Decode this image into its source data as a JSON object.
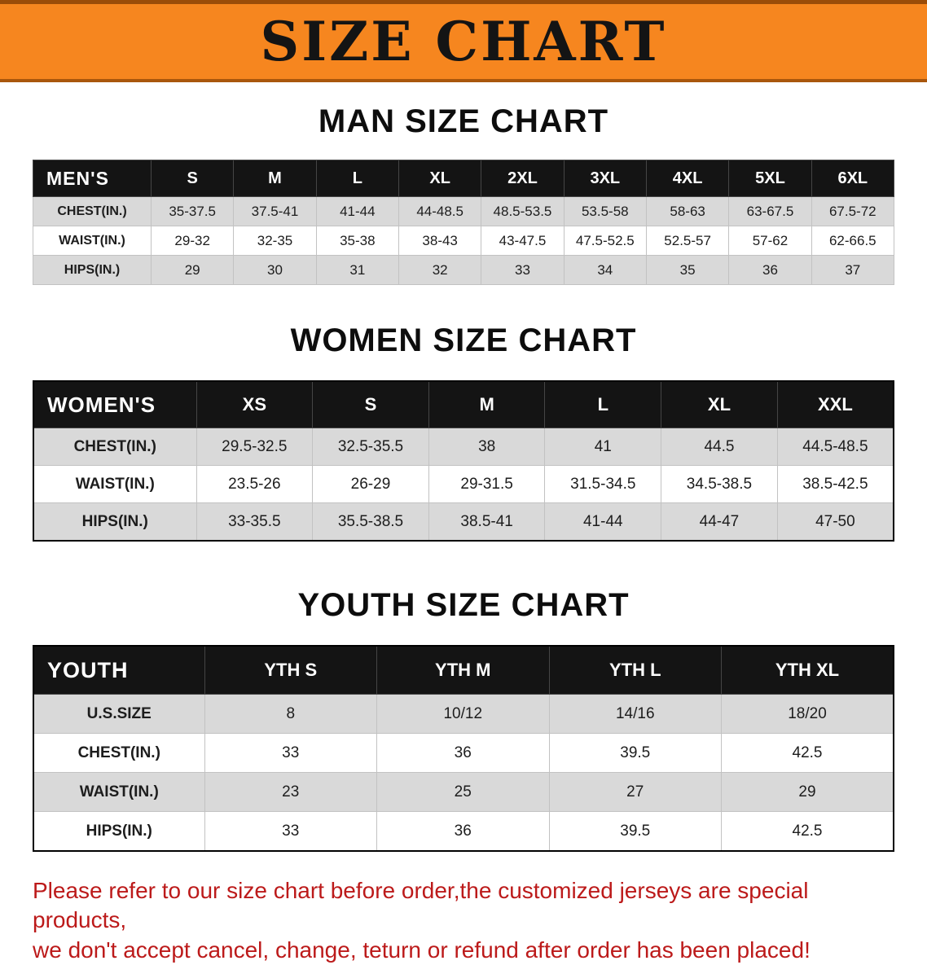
{
  "banner": {
    "title": "SIZE CHART"
  },
  "chart_data": [
    {
      "type": "table",
      "title": "MAN SIZE CHART",
      "corner": "MEN'S",
      "columns": [
        "S",
        "M",
        "L",
        "XL",
        "2XL",
        "3XL",
        "4XL",
        "5XL",
        "6XL"
      ],
      "rows": [
        {
          "label": "CHEST(IN.)",
          "values": [
            "35-37.5",
            "37.5-41",
            "41-44",
            "44-48.5",
            "48.5-53.5",
            "53.5-58",
            "58-63",
            "63-67.5",
            "67.5-72"
          ]
        },
        {
          "label": "WAIST(IN.)",
          "values": [
            "29-32",
            "32-35",
            "35-38",
            "38-43",
            "43-47.5",
            "47.5-52.5",
            "52.5-57",
            "57-62",
            "62-66.5"
          ]
        },
        {
          "label": "HIPS(IN.)",
          "values": [
            "29",
            "30",
            "31",
            "32",
            "33",
            "34",
            "35",
            "36",
            "37"
          ]
        }
      ]
    },
    {
      "type": "table",
      "title": "WOMEN SIZE CHART",
      "corner": "WOMEN'S",
      "columns": [
        "XS",
        "S",
        "M",
        "L",
        "XL",
        "XXL"
      ],
      "rows": [
        {
          "label": "CHEST(IN.)",
          "values": [
            "29.5-32.5",
            "32.5-35.5",
            "38",
            "41",
            "44.5",
            "44.5-48.5"
          ]
        },
        {
          "label": "WAIST(IN.)",
          "values": [
            "23.5-26",
            "26-29",
            "29-31.5",
            "31.5-34.5",
            "34.5-38.5",
            "38.5-42.5"
          ]
        },
        {
          "label": "HIPS(IN.)",
          "values": [
            "33-35.5",
            "35.5-38.5",
            "38.5-41",
            "41-44",
            "44-47",
            "47-50"
          ]
        }
      ]
    },
    {
      "type": "table",
      "title": "YOUTH SIZE CHART",
      "corner": "YOUTH",
      "columns": [
        "YTH S",
        "YTH M",
        "YTH L",
        "YTH XL"
      ],
      "rows": [
        {
          "label": "U.S.SIZE",
          "values": [
            "8",
            "10/12",
            "14/16",
            "18/20"
          ]
        },
        {
          "label": "CHEST(IN.)",
          "values": [
            "33",
            "36",
            "39.5",
            "42.5"
          ]
        },
        {
          "label": "WAIST(IN.)",
          "values": [
            "23",
            "25",
            "27",
            "29"
          ]
        },
        {
          "label": "HIPS(IN.)",
          "values": [
            "33",
            "36",
            "39.5",
            "42.5"
          ]
        }
      ]
    }
  ],
  "note": {
    "line1": "Please refer to our size chart before order,the customized jerseys are special products,",
    "line2": "we don't accept cancel, change, teturn or refund after order has been placed!"
  },
  "colors": {
    "banner_orange": "#f6861f",
    "table_header_black": "#141414",
    "stripe_gray": "#d9d9d9",
    "note_red": "#bc1a1a"
  }
}
